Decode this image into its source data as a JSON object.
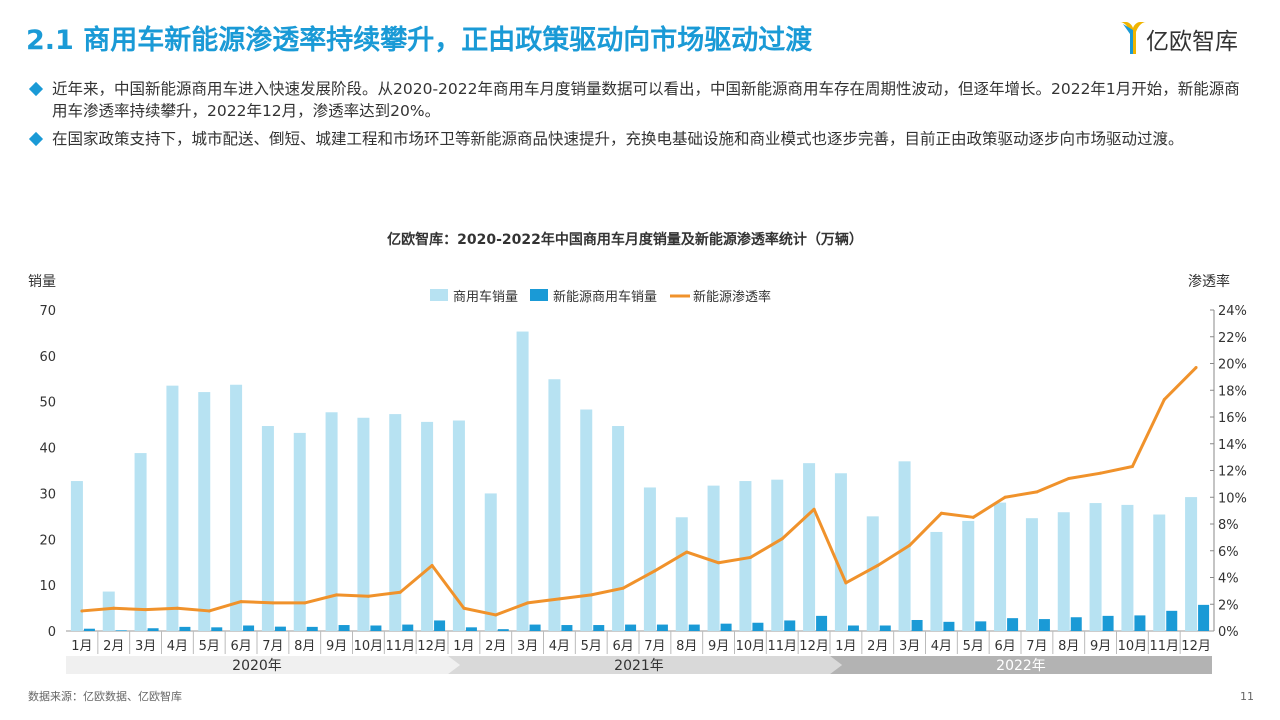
{
  "header": {
    "title": "2.1 商用车新能源渗透率持续攀升，正由政策驱动向市场驱动过渡",
    "logo_text": "亿欧智库"
  },
  "bullets": [
    "近年来，中国新能源商用车进入快速发展阶段。从2020-2022年商用车月度销量数据可以看出，中国新能源商用车存在周期性波动，但逐年增长。2022年1月开始，新能源商用车渗透率持续攀升，2022年12月，渗透率达到20%。",
    "在国家政策支持下，城市配送、倒短、城建工程和市场环卫等新能源商品快速提升，充换电基础设施和商业模式也逐步完善，目前正由政策驱动逐步向市场驱动过渡。"
  ],
  "chart_data": {
    "type": "bar",
    "title": "亿欧智库：2020-2022年中国商用车月度销量及新能源渗透率统计（万辆）",
    "ylabel": "销量",
    "y2label": "渗透率",
    "ylim": [
      0,
      70
    ],
    "y2lim": [
      0,
      24
    ],
    "yticks": [
      "0",
      "10",
      "20",
      "30",
      "40",
      "50",
      "60",
      "70"
    ],
    "y2ticks": [
      "0%",
      "2%",
      "4%",
      "6%",
      "8%",
      "10%",
      "12%",
      "14%",
      "16%",
      "18%",
      "20%",
      "22%",
      "24%"
    ],
    "categories": [
      "1月",
      "2月",
      "3月",
      "4月",
      "5月",
      "6月",
      "7月",
      "8月",
      "9月",
      "10月",
      "11月",
      "12月",
      "1月",
      "2月",
      "3月",
      "4月",
      "5月",
      "6月",
      "7月",
      "8月",
      "9月",
      "10月",
      "11月",
      "12月",
      "1月",
      "2月",
      "3月",
      "4月",
      "5月",
      "6月",
      "7月",
      "8月",
      "9月",
      "10月",
      "11月",
      "12月"
    ],
    "year_groups": [
      {
        "label": "2020年",
        "count": 12
      },
      {
        "label": "2021年",
        "count": 12
      },
      {
        "label": "2022年",
        "count": 12
      }
    ],
    "series": [
      {
        "name": "商用车销量",
        "kind": "bar",
        "color": "#b7e2f2",
        "values": [
          32.7,
          8.6,
          38.8,
          53.5,
          52.1,
          53.7,
          44.7,
          43.2,
          47.7,
          46.5,
          47.3,
          45.6,
          45.9,
          30.0,
          65.3,
          54.9,
          48.3,
          44.7,
          31.3,
          24.8,
          31.7,
          32.7,
          33.0,
          36.6,
          34.4,
          25.0,
          37.0,
          21.6,
          24.0,
          28.0,
          24.6,
          25.9,
          27.9,
          27.5,
          25.4,
          29.2
        ]
      },
      {
        "name": "新能源商用车销量",
        "kind": "bar",
        "color": "#1a9ad6",
        "values": [
          0.5,
          0.15,
          0.6,
          0.9,
          0.8,
          1.2,
          0.95,
          0.9,
          1.3,
          1.2,
          1.4,
          2.3,
          0.8,
          0.4,
          1.4,
          1.3,
          1.3,
          1.4,
          1.4,
          1.4,
          1.6,
          1.8,
          2.3,
          3.3,
          1.2,
          1.2,
          2.4,
          2.0,
          2.1,
          2.8,
          2.6,
          3.0,
          3.3,
          3.4,
          4.4,
          5.7
        ]
      },
      {
        "name": "新能源渗透率",
        "kind": "line",
        "color": "#f0922b",
        "axis": "right",
        "values": [
          1.5,
          1.7,
          1.6,
          1.7,
          1.5,
          2.2,
          2.1,
          2.1,
          2.7,
          2.6,
          2.9,
          4.9,
          1.7,
          1.2,
          2.1,
          2.4,
          2.7,
          3.2,
          4.5,
          5.9,
          5.1,
          5.5,
          6.9,
          9.1,
          3.6,
          4.9,
          6.4,
          8.8,
          8.5,
          10.0,
          10.4,
          11.4,
          11.8,
          12.3,
          17.3,
          19.7
        ]
      }
    ],
    "legend_position": "top-center"
  },
  "footer": {
    "source": "数据来源：亿欧数据、亿欧智库",
    "page": "11"
  },
  "colors": {
    "accent": "#1a9ad6",
    "bar_light": "#b7e2f2",
    "line": "#f0922b"
  }
}
